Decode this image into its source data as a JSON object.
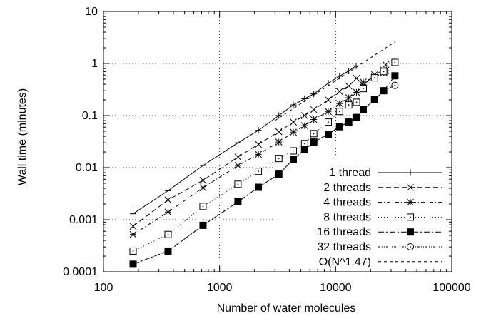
{
  "chart_data": {
    "type": "line",
    "title": "",
    "xlabel": "Number of water molecules",
    "ylabel": "Wall time (minutes)",
    "xscale": "log",
    "yscale": "log",
    "xlim": [
      100,
      100000
    ],
    "ylim": [
      0.0001,
      10
    ],
    "x_ticks": [
      100,
      1000,
      10000,
      100000
    ],
    "x_tick_labels": [
      "100",
      "1000",
      "10000",
      "100000"
    ],
    "y_ticks": [
      0.0001,
      0.001,
      0.01,
      0.1,
      1,
      10
    ],
    "y_tick_labels": [
      "0.0001",
      "0.001",
      "0.01",
      "0.1",
      "1",
      "10"
    ],
    "grid": true,
    "legend_position": "bottom-right",
    "series": [
      {
        "name": "1 thread",
        "marker": "plus",
        "dash": "",
        "x": [
          180,
          360,
          720,
          1440,
          2160,
          3240,
          4320,
          5400,
          6480,
          8640,
          10800,
          12960,
          15000
        ],
        "y": [
          0.0013,
          0.0036,
          0.011,
          0.03,
          0.052,
          0.1,
          0.16,
          0.21,
          0.26,
          0.42,
          0.57,
          0.72,
          0.9
        ]
      },
      {
        "name": "2 threads",
        "marker": "x",
        "dash": "7,4",
        "x": [
          180,
          360,
          720,
          1440,
          2160,
          3240,
          4320,
          5400,
          6480,
          8640,
          10800,
          12960,
          15120,
          17280,
          21600,
          25920,
          27000
        ],
        "y": [
          0.00075,
          0.0024,
          0.0057,
          0.016,
          0.028,
          0.049,
          0.075,
          0.1,
          0.13,
          0.2,
          0.29,
          0.37,
          0.52,
          0.38,
          0.61,
          0.75,
          0.95
        ]
      },
      {
        "name": "4 threads",
        "marker": "star",
        "dash": "5,3,1,3",
        "x": [
          180,
          360,
          720,
          1440,
          2160,
          3240,
          4320,
          5400,
          6480,
          8640,
          10800,
          12960,
          15120,
          17280,
          21600,
          25920,
          27000
        ],
        "y": [
          0.00052,
          0.0014,
          0.0041,
          0.011,
          0.018,
          0.031,
          0.048,
          0.064,
          0.084,
          0.12,
          0.17,
          0.22,
          0.28,
          0.44,
          0.55,
          0.67,
          0.73
        ]
      },
      {
        "name": "8 threads",
        "marker": "square-dot",
        "dash": "1,3",
        "x": [
          180,
          360,
          720,
          1440,
          2160,
          3240,
          4320,
          5400,
          6480,
          8640,
          10800,
          12960,
          15120,
          17280,
          21600,
          25920,
          32400
        ],
        "y": [
          0.00025,
          0.00052,
          0.0018,
          0.0048,
          0.0085,
          0.015,
          0.021,
          0.029,
          0.045,
          0.075,
          0.12,
          0.16,
          0.18,
          0.33,
          0.53,
          0.7,
          1.05
        ]
      },
      {
        "name": "16 threads",
        "marker": "filled-square",
        "dash": "8,3,2,3",
        "x": [
          180,
          360,
          720,
          1440,
          2160,
          3240,
          4320,
          5400,
          6480,
          8640,
          10800,
          12960,
          15120,
          17280,
          21600,
          25920,
          32400
        ],
        "y": [
          0.00014,
          0.00025,
          0.00078,
          0.0022,
          0.0042,
          0.0075,
          0.0145,
          0.022,
          0.031,
          0.044,
          0.061,
          0.075,
          0.092,
          0.13,
          0.2,
          0.3,
          0.58
        ]
      },
      {
        "name": "32 threads",
        "marker": "circle-dot",
        "dash": "3,2,1,2,1,2",
        "x": [
          180,
          360,
          720,
          1440,
          2160,
          3240,
          4320,
          5400,
          6480,
          8640,
          10800,
          12960,
          15120,
          17280,
          21600,
          25920,
          32400
        ],
        "y": [
          0.00014,
          0.00025,
          0.00078,
          0.0022,
          0.0042,
          0.0075,
          0.0145,
          0.022,
          0.031,
          0.044,
          0.061,
          0.075,
          0.092,
          0.13,
          0.2,
          0.3,
          0.38
        ]
      },
      {
        "name": "O(N^1.47)",
        "marker": "none",
        "dash": "4,4",
        "x": [
          3000,
          32400
        ],
        "y": [
          0.08,
          2.6
        ]
      }
    ]
  }
}
